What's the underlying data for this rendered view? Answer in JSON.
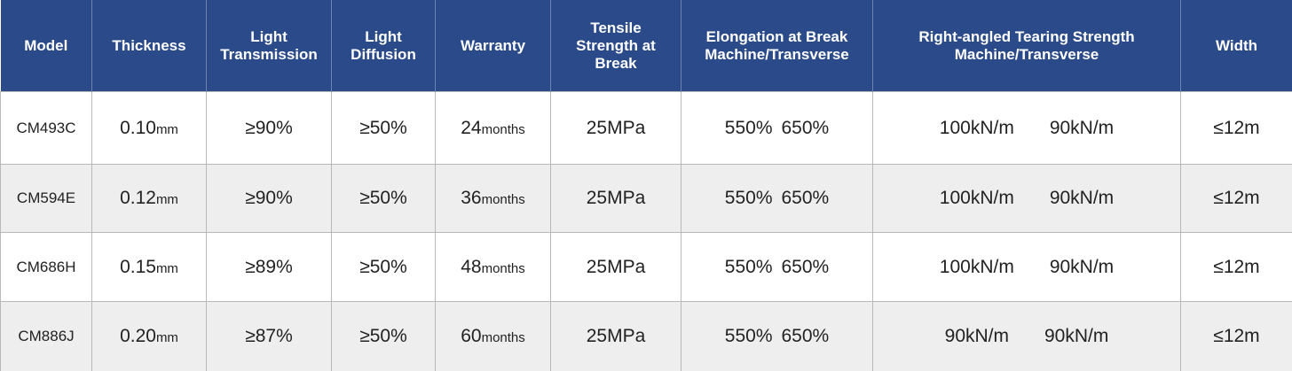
{
  "table": {
    "header": [
      [
        "Model"
      ],
      [
        "Thickness"
      ],
      [
        "Light",
        "Transmission"
      ],
      [
        "Light",
        "Diffusion"
      ],
      [
        "Warranty"
      ],
      [
        "Tensile",
        "Strength at",
        "Break"
      ],
      [
        "Elongation at Break",
        "Machine/Transverse"
      ],
      [
        "Right-angled Tearing Strength",
        "Machine/Transverse"
      ],
      [
        "Width"
      ]
    ],
    "rows": [
      {
        "model": "CM493C",
        "thickness": {
          "value": "0.10",
          "unit": "mm"
        },
        "transmission": "≥90%",
        "diffusion": "≥50%",
        "warranty": {
          "value": "24",
          "unit": "months"
        },
        "tensile": "25MPa",
        "elongation": [
          "550%",
          "650%"
        ],
        "tearing": [
          "100kN/m",
          "90kN/m"
        ],
        "width": "≤12m"
      },
      {
        "model": "CM594E",
        "thickness": {
          "value": "0.12",
          "unit": "mm"
        },
        "transmission": "≥90%",
        "diffusion": "≥50%",
        "warranty": {
          "value": "36",
          "unit": "months"
        },
        "tensile": "25MPa",
        "elongation": [
          "550%",
          "650%"
        ],
        "tearing": [
          "100kN/m",
          "90kN/m"
        ],
        "width": "≤12m"
      },
      {
        "model": "CM686H",
        "thickness": {
          "value": "0.15",
          "unit": "mm"
        },
        "transmission": "≥89%",
        "diffusion": "≥50%",
        "warranty": {
          "value": "48",
          "unit": "months"
        },
        "tensile": "25MPa",
        "elongation": [
          "550%",
          "650%"
        ],
        "tearing": [
          "100kN/m",
          "90kN/m"
        ],
        "width": "≤12m"
      },
      {
        "model": "CM886J",
        "thickness": {
          "value": "0.20",
          "unit": "mm"
        },
        "transmission": "≥87%",
        "diffusion": "≥50%",
        "warranty": {
          "value": "60",
          "unit": "months"
        },
        "tensile": "25MPa",
        "elongation": [
          "550%",
          "650%"
        ],
        "tearing": [
          "90kN/m",
          "90kN/m"
        ],
        "width": "≤12m"
      }
    ]
  }
}
